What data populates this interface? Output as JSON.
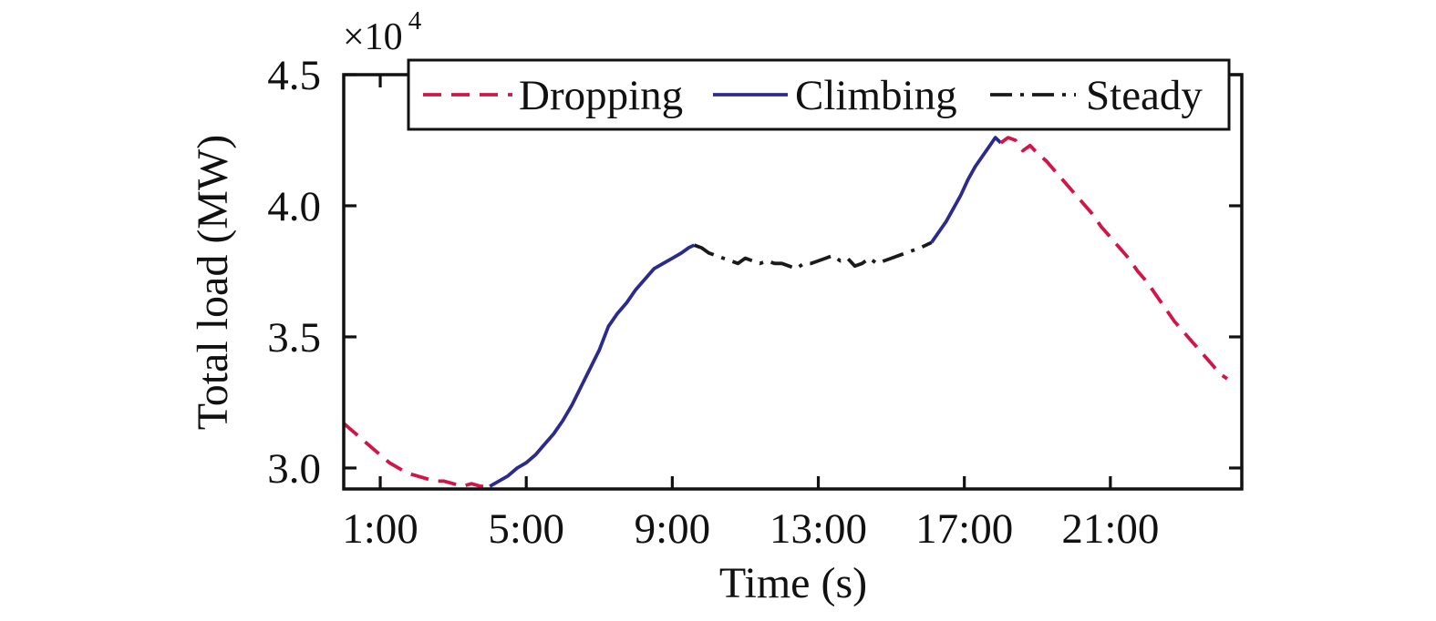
{
  "chart_data": {
    "type": "line",
    "title": "",
    "xlabel": "Time (s)",
    "ylabel": "Total load (MW)",
    "offset": {
      "base": "×10",
      "exp": "4"
    },
    "y_unit_multiplier": 10000,
    "xlim": [
      0,
      24.6
    ],
    "ylim": [
      2.92,
      4.5
    ],
    "grid": false,
    "legend_position": "top-inside",
    "xticks": [
      {
        "t": 1,
        "label": "1:00"
      },
      {
        "t": 5,
        "label": "5:00"
      },
      {
        "t": 9,
        "label": "9:00"
      },
      {
        "t": 13,
        "label": "13:00"
      },
      {
        "t": 17,
        "label": "17:00"
      },
      {
        "t": 21,
        "label": "21:00"
      }
    ],
    "yticks": [
      {
        "v": 3.0,
        "label": "3.0"
      },
      {
        "v": 3.5,
        "label": "3.5"
      },
      {
        "v": 4.0,
        "label": "4.0"
      },
      {
        "v": 4.5,
        "label": "4.5"
      }
    ],
    "legend": [
      {
        "label": "Dropping",
        "style": "dashed",
        "color": "#d11548"
      },
      {
        "label": "Climbing",
        "style": "solid",
        "color": "#2b2b8e"
      },
      {
        "label": "Steady",
        "style": "dashdot",
        "color": "#1a1a1a"
      }
    ],
    "segments": [
      {
        "name": "dropping-early-morning",
        "legend": "Dropping",
        "style": "dashed",
        "color": "#d11548",
        "t": [
          0,
          0.25,
          0.5,
          0.75,
          1,
          1.25,
          1.5,
          1.75,
          2,
          2.25,
          2.5,
          2.75,
          3,
          3.25,
          3.5,
          3.75,
          4
        ],
        "v": [
          3.17,
          3.14,
          3.11,
          3.08,
          3.05,
          3.02,
          3.0,
          2.98,
          2.97,
          2.96,
          2.95,
          2.95,
          2.94,
          2.93,
          2.94,
          2.93,
          2.93
        ]
      },
      {
        "name": "climbing-morning",
        "legend": "Climbing",
        "style": "solid",
        "color": "#2b2b8e",
        "t": [
          4,
          4.25,
          4.5,
          4.75,
          5,
          5.25,
          5.5,
          5.75,
          6,
          6.25,
          6.5,
          6.75,
          7,
          7.25,
          7.5,
          7.75,
          8,
          8.25,
          8.5,
          8.75,
          9,
          9.25,
          9.45,
          9.6
        ],
        "v": [
          2.93,
          2.95,
          2.97,
          3.0,
          3.02,
          3.05,
          3.09,
          3.13,
          3.18,
          3.24,
          3.31,
          3.38,
          3.45,
          3.54,
          3.59,
          3.63,
          3.68,
          3.72,
          3.76,
          3.78,
          3.8,
          3.82,
          3.84,
          3.85
        ]
      },
      {
        "name": "steady-midday",
        "legend": "Steady",
        "style": "dashdot",
        "color": "#1a1a1a",
        "t": [
          9.6,
          9.8,
          10,
          10.2,
          10.4,
          10.6,
          10.8,
          11,
          11.2,
          11.4,
          11.6,
          11.8,
          12,
          12.2,
          12.4,
          12.6,
          12.8,
          13,
          13.2,
          13.4,
          13.6,
          13.8,
          14,
          14.2,
          14.4,
          14.6,
          14.8,
          15,
          15.2,
          15.4,
          15.6,
          15.8,
          16.1
        ],
        "v": [
          3.85,
          3.84,
          3.82,
          3.81,
          3.8,
          3.79,
          3.78,
          3.8,
          3.79,
          3.78,
          3.79,
          3.78,
          3.78,
          3.77,
          3.76,
          3.78,
          3.78,
          3.79,
          3.8,
          3.81,
          3.79,
          3.8,
          3.77,
          3.78,
          3.8,
          3.78,
          3.79,
          3.8,
          3.81,
          3.82,
          3.83,
          3.84,
          3.86
        ]
      },
      {
        "name": "climbing-evening",
        "legend": "Climbing",
        "style": "solid",
        "color": "#2b2b8e",
        "t": [
          16.1,
          16.3,
          16.5,
          16.7,
          16.9,
          17.1,
          17.3,
          17.5,
          17.7,
          17.85,
          18
        ],
        "v": [
          3.86,
          3.9,
          3.94,
          3.99,
          4.04,
          4.1,
          4.15,
          4.19,
          4.23,
          4.26,
          4.24
        ]
      },
      {
        "name": "dropping-night",
        "legend": "Dropping",
        "style": "dashed",
        "color": "#d11548",
        "t": [
          18,
          18.2,
          18.4,
          18.6,
          18.8,
          19,
          19.25,
          19.5,
          19.75,
          20,
          20.25,
          20.5,
          20.75,
          21,
          21.25,
          21.5,
          21.75,
          22,
          22.25,
          22.5,
          22.75,
          23,
          23.25,
          23.5,
          23.75,
          24,
          24.2
        ],
        "v": [
          4.24,
          4.26,
          4.25,
          4.21,
          4.23,
          4.2,
          4.17,
          4.13,
          4.09,
          4.05,
          4.01,
          3.97,
          3.92,
          3.88,
          3.84,
          3.8,
          3.75,
          3.71,
          3.66,
          3.61,
          3.56,
          3.52,
          3.48,
          3.44,
          3.4,
          3.36,
          3.34
        ]
      }
    ]
  }
}
